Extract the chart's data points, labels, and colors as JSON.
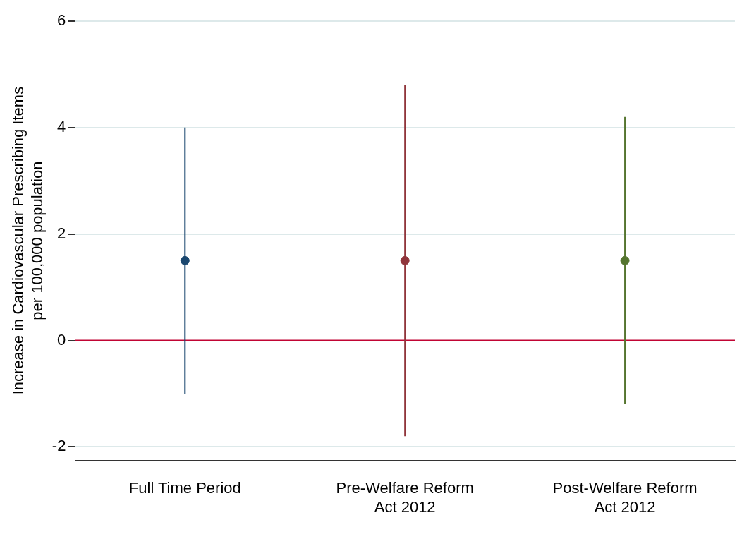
{
  "chart_data": {
    "type": "scatter",
    "ylabel": "Increase in Cardiovascular Prescribing Items per 100,000 population",
    "categories": [
      "Full Time Period",
      "Pre-Welfare Reform Act 2012",
      "Post-Welfare Reform Act 2012"
    ],
    "values": [
      1.5,
      1.5,
      1.5
    ],
    "colors": [
      "#1a476f",
      "#90353b",
      "#55752f"
    ],
    "errors": [
      [
        -1.0,
        4.0
      ],
      [
        -1.8,
        4.8
      ],
      [
        -1.2,
        4.2
      ]
    ],
    "marker": "circle",
    "ylim": [
      -2.25,
      6
    ],
    "yticks": [
      -2,
      0,
      2,
      4,
      6
    ],
    "grid": "y",
    "ref_lines": [
      {
        "axis": "y",
        "value": 0,
        "color": "#c10534"
      }
    ]
  }
}
